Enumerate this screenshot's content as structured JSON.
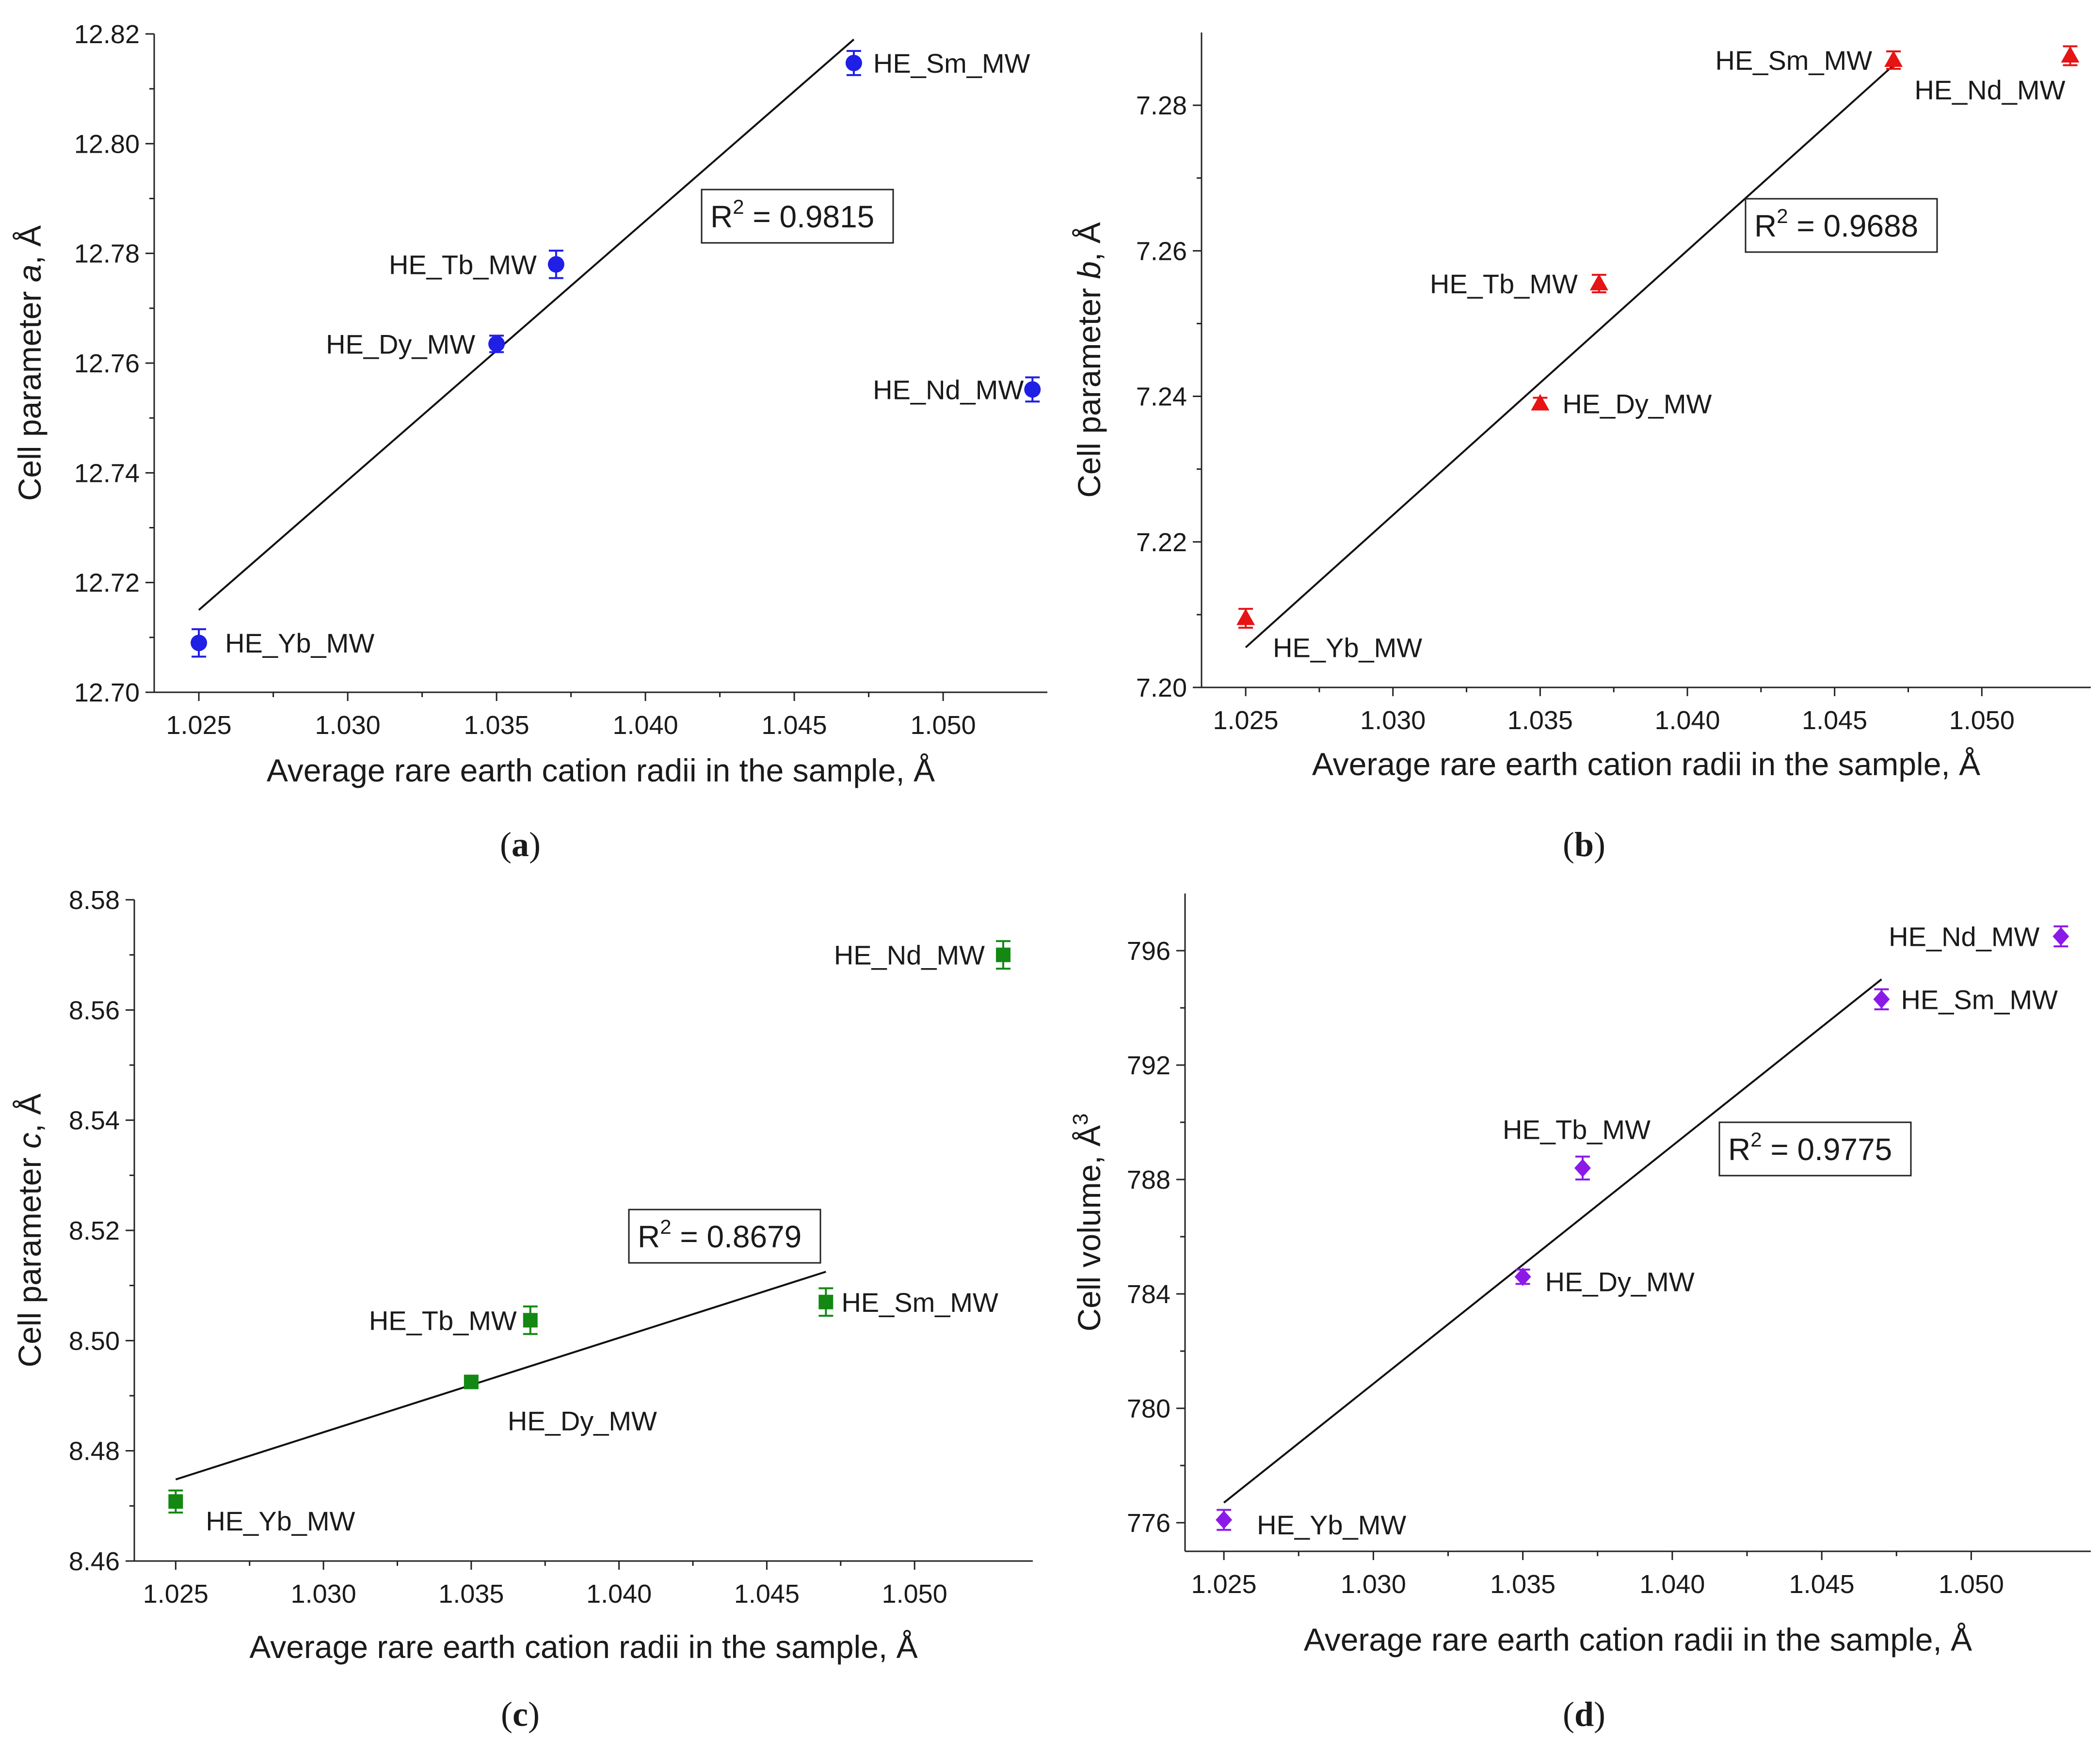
{
  "figure": {
    "panel_captions": [
      {
        "open": "(",
        "letter": "a",
        "close": ")"
      },
      {
        "open": "(",
        "letter": "b",
        "close": ")"
      },
      {
        "open": "(",
        "letter": "c",
        "close": ")"
      },
      {
        "open": "(",
        "letter": "d",
        "close": ")"
      }
    ]
  },
  "chart_data": [
    {
      "type": "scatter",
      "panel": "a",
      "marker": "circle",
      "color": "#1f1fe6",
      "xlabel": "Average rare earth cation radii in the sample, Å",
      "ylabel_prefix": "Cell parameter ",
      "ylabel_var": "a",
      "ylabel_suffix": ", Å",
      "xlim": [
        1.0235,
        1.0535
      ],
      "ylim": [
        12.7,
        12.82
      ],
      "x_ticks": [
        "1.025",
        "1.030",
        "1.035",
        "1.040",
        "1.045",
        "1.050"
      ],
      "y_ticks": [
        "12.70",
        "12.72",
        "12.74",
        "12.76",
        "12.78",
        "12.80",
        "12.82"
      ],
      "points": [
        {
          "label": "HE_Yb_MW",
          "x": 1.025,
          "y": 12.709,
          "err": 0.0025
        },
        {
          "label": "HE_Dy_MW",
          "x": 1.035,
          "y": 12.7635,
          "err": 0.0015
        },
        {
          "label": "HE_Tb_MW",
          "x": 1.037,
          "y": 12.778,
          "err": 0.0025
        },
        {
          "label": "HE_Sm_MW",
          "x": 1.047,
          "y": 12.8147,
          "err": 0.0022
        },
        {
          "label": "HE_Nd_MW",
          "x": 1.053,
          "y": 12.7552,
          "err": 0.0022
        }
      ],
      "fit": {
        "x1": 1.025,
        "y1": 12.715,
        "x2": 1.047,
        "y2": 12.819
      },
      "r2": {
        "base": "R",
        "exp": "2",
        "text": " = 0.9815"
      }
    },
    {
      "type": "scatter",
      "panel": "b",
      "marker": "triangle",
      "color": "#e61414",
      "xlabel": "Average rare earth cation radii in the sample, Å",
      "ylabel_prefix": "Cell parameter ",
      "ylabel_var": "b",
      "ylabel_suffix": ", Å",
      "xlim": [
        1.0235,
        1.0537
      ],
      "ylim": [
        7.2,
        7.29
      ],
      "x_ticks": [
        "1.025",
        "1.030",
        "1.035",
        "1.040",
        "1.045",
        "1.050"
      ],
      "y_ticks": [
        "7.20",
        "7.22",
        "7.24",
        "7.26",
        "7.28"
      ],
      "points": [
        {
          "label": "HE_Yb_MW",
          "x": 1.025,
          "y": 7.2095,
          "err": 0.0013
        },
        {
          "label": "HE_Dy_MW",
          "x": 1.035,
          "y": 7.239,
          "err": 0.0008
        },
        {
          "label": "HE_Tb_MW",
          "x": 1.037,
          "y": 7.2555,
          "err": 0.0012
        },
        {
          "label": "HE_Sm_MW",
          "x": 1.047,
          "y": 7.2862,
          "err": 0.0012
        },
        {
          "label": "HE_Nd_MW",
          "x": 1.053,
          "y": 7.2868,
          "err": 0.0013
        }
      ],
      "fit": {
        "x1": 1.025,
        "y1": 7.2055,
        "x2": 1.047,
        "y2": 7.2855
      },
      "r2": {
        "base": "R",
        "exp": "2",
        "text": " = 0.9688"
      }
    },
    {
      "type": "scatter",
      "panel": "c",
      "marker": "square",
      "color": "#138813",
      "xlabel": "Average rare earth cation radii in the sample, Å",
      "ylabel_prefix": "Cell parameter ",
      "ylabel_var": "c",
      "ylabel_suffix": ", Å",
      "xlim": [
        1.0236,
        1.054
      ],
      "ylim": [
        8.46,
        8.58
      ],
      "x_ticks": [
        "1.025",
        "1.030",
        "1.035",
        "1.040",
        "1.045",
        "1.050"
      ],
      "y_ticks": [
        "8.46",
        "8.48",
        "8.50",
        "8.52",
        "8.54",
        "8.56",
        "8.58"
      ],
      "points": [
        {
          "label": "HE_Yb_MW",
          "x": 1.025,
          "y": 8.4708,
          "err": 0.002
        },
        {
          "label": "HE_Dy_MW",
          "x": 1.035,
          "y": 8.4925,
          "err": 0.001
        },
        {
          "label": "HE_Tb_MW",
          "x": 1.037,
          "y": 8.5037,
          "err": 0.0025
        },
        {
          "label": "HE_Sm_MW",
          "x": 1.047,
          "y": 8.507,
          "err": 0.0025
        },
        {
          "label": "HE_Nd_MW",
          "x": 1.053,
          "y": 8.57,
          "err": 0.0025
        }
      ],
      "fit": {
        "x1": 1.025,
        "y1": 8.4748,
        "x2": 1.047,
        "y2": 8.5125
      },
      "r2": {
        "base": "R",
        "exp": "2",
        "text": " = 0.8679"
      }
    },
    {
      "type": "scatter",
      "panel": "d",
      "marker": "diamond",
      "color": "#8b1ae8",
      "xlabel": "Average rare earth cation radii in the sample, Å",
      "ylabel_prefix": "Cell volume, Å",
      "ylabel_var": "",
      "ylabel_suffix": "",
      "ylabel_sup": "3",
      "xlim": [
        1.0237,
        1.054
      ],
      "ylim": [
        775,
        798
      ],
      "x_ticks": [
        "1.025",
        "1.030",
        "1.035",
        "1.040",
        "1.045",
        "1.050"
      ],
      "y_ticks": [
        "776",
        "780",
        "784",
        "788",
        "792",
        "796"
      ],
      "points": [
        {
          "label": "HE_Yb_MW",
          "x": 1.025,
          "y": 776.1,
          "err": 0.35
        },
        {
          "label": "HE_Dy_MW",
          "x": 1.035,
          "y": 784.6,
          "err": 0.25
        },
        {
          "label": "HE_Tb_MW",
          "x": 1.037,
          "y": 788.4,
          "err": 0.4
        },
        {
          "label": "HE_Sm_MW",
          "x": 1.047,
          "y": 794.3,
          "err": 0.35
        },
        {
          "label": "HE_Nd_MW",
          "x": 1.053,
          "y": 796.5,
          "err": 0.35
        }
      ],
      "fit": {
        "x1": 1.025,
        "y1": 776.7,
        "x2": 1.047,
        "y2": 795.0
      },
      "r2": {
        "base": "R",
        "exp": "2",
        "text": " = 0.9775"
      }
    }
  ]
}
